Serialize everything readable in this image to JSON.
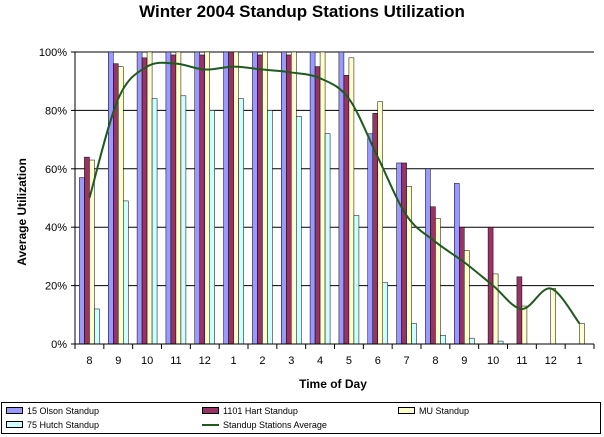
{
  "chart_data": {
    "type": "bar",
    "title": "Winter 2004 Standup Stations Utilization",
    "xlabel": "Time of Day",
    "ylabel": "Average Utilization",
    "categories": [
      "8",
      "9",
      "10",
      "11",
      "12",
      "1",
      "2",
      "3",
      "4",
      "5",
      "6",
      "7",
      "8",
      "9",
      "10",
      "11",
      "12",
      "1"
    ],
    "ylim": [
      0,
      100
    ],
    "yticks": [
      "0%",
      "20%",
      "40%",
      "60%",
      "80%",
      "100%"
    ],
    "grid": true,
    "legend_position": "bottom",
    "series": [
      {
        "name": "15 Olson Standup",
        "type": "bar",
        "color": "#9999ff",
        "values": [
          57,
          100,
          100,
          100,
          100,
          100,
          100,
          100,
          100,
          100,
          72,
          62,
          60,
          55,
          0,
          0,
          0,
          0
        ]
      },
      {
        "name": "1101 Hart Standup",
        "type": "bar",
        "color": "#993366",
        "values": [
          64,
          96,
          98,
          99,
          99,
          100,
          99,
          99,
          95,
          92,
          79,
          62,
          47,
          40,
          40,
          23,
          0,
          0
        ]
      },
      {
        "name": "MU Standup",
        "type": "bar",
        "color": "#ffffcc",
        "values": [
          63,
          95,
          100,
          100,
          100,
          100,
          100,
          100,
          100,
          98,
          83,
          54,
          43,
          32,
          24,
          13,
          19,
          7
        ]
      },
      {
        "name": "75 Hutch Standup",
        "type": "bar",
        "color": "#ccffff",
        "values": [
          12,
          49,
          84,
          85,
          80,
          84,
          80,
          78,
          72,
          44,
          21,
          7,
          3,
          2,
          1,
          0,
          0,
          0
        ]
      },
      {
        "name": "Standup Stations Average",
        "type": "line",
        "color": "#1f5b1f",
        "values": [
          50,
          84,
          95,
          96,
          94,
          95,
          94,
          93,
          91,
          84,
          64,
          44,
          35,
          28,
          20,
          12,
          19,
          7
        ]
      }
    ]
  }
}
